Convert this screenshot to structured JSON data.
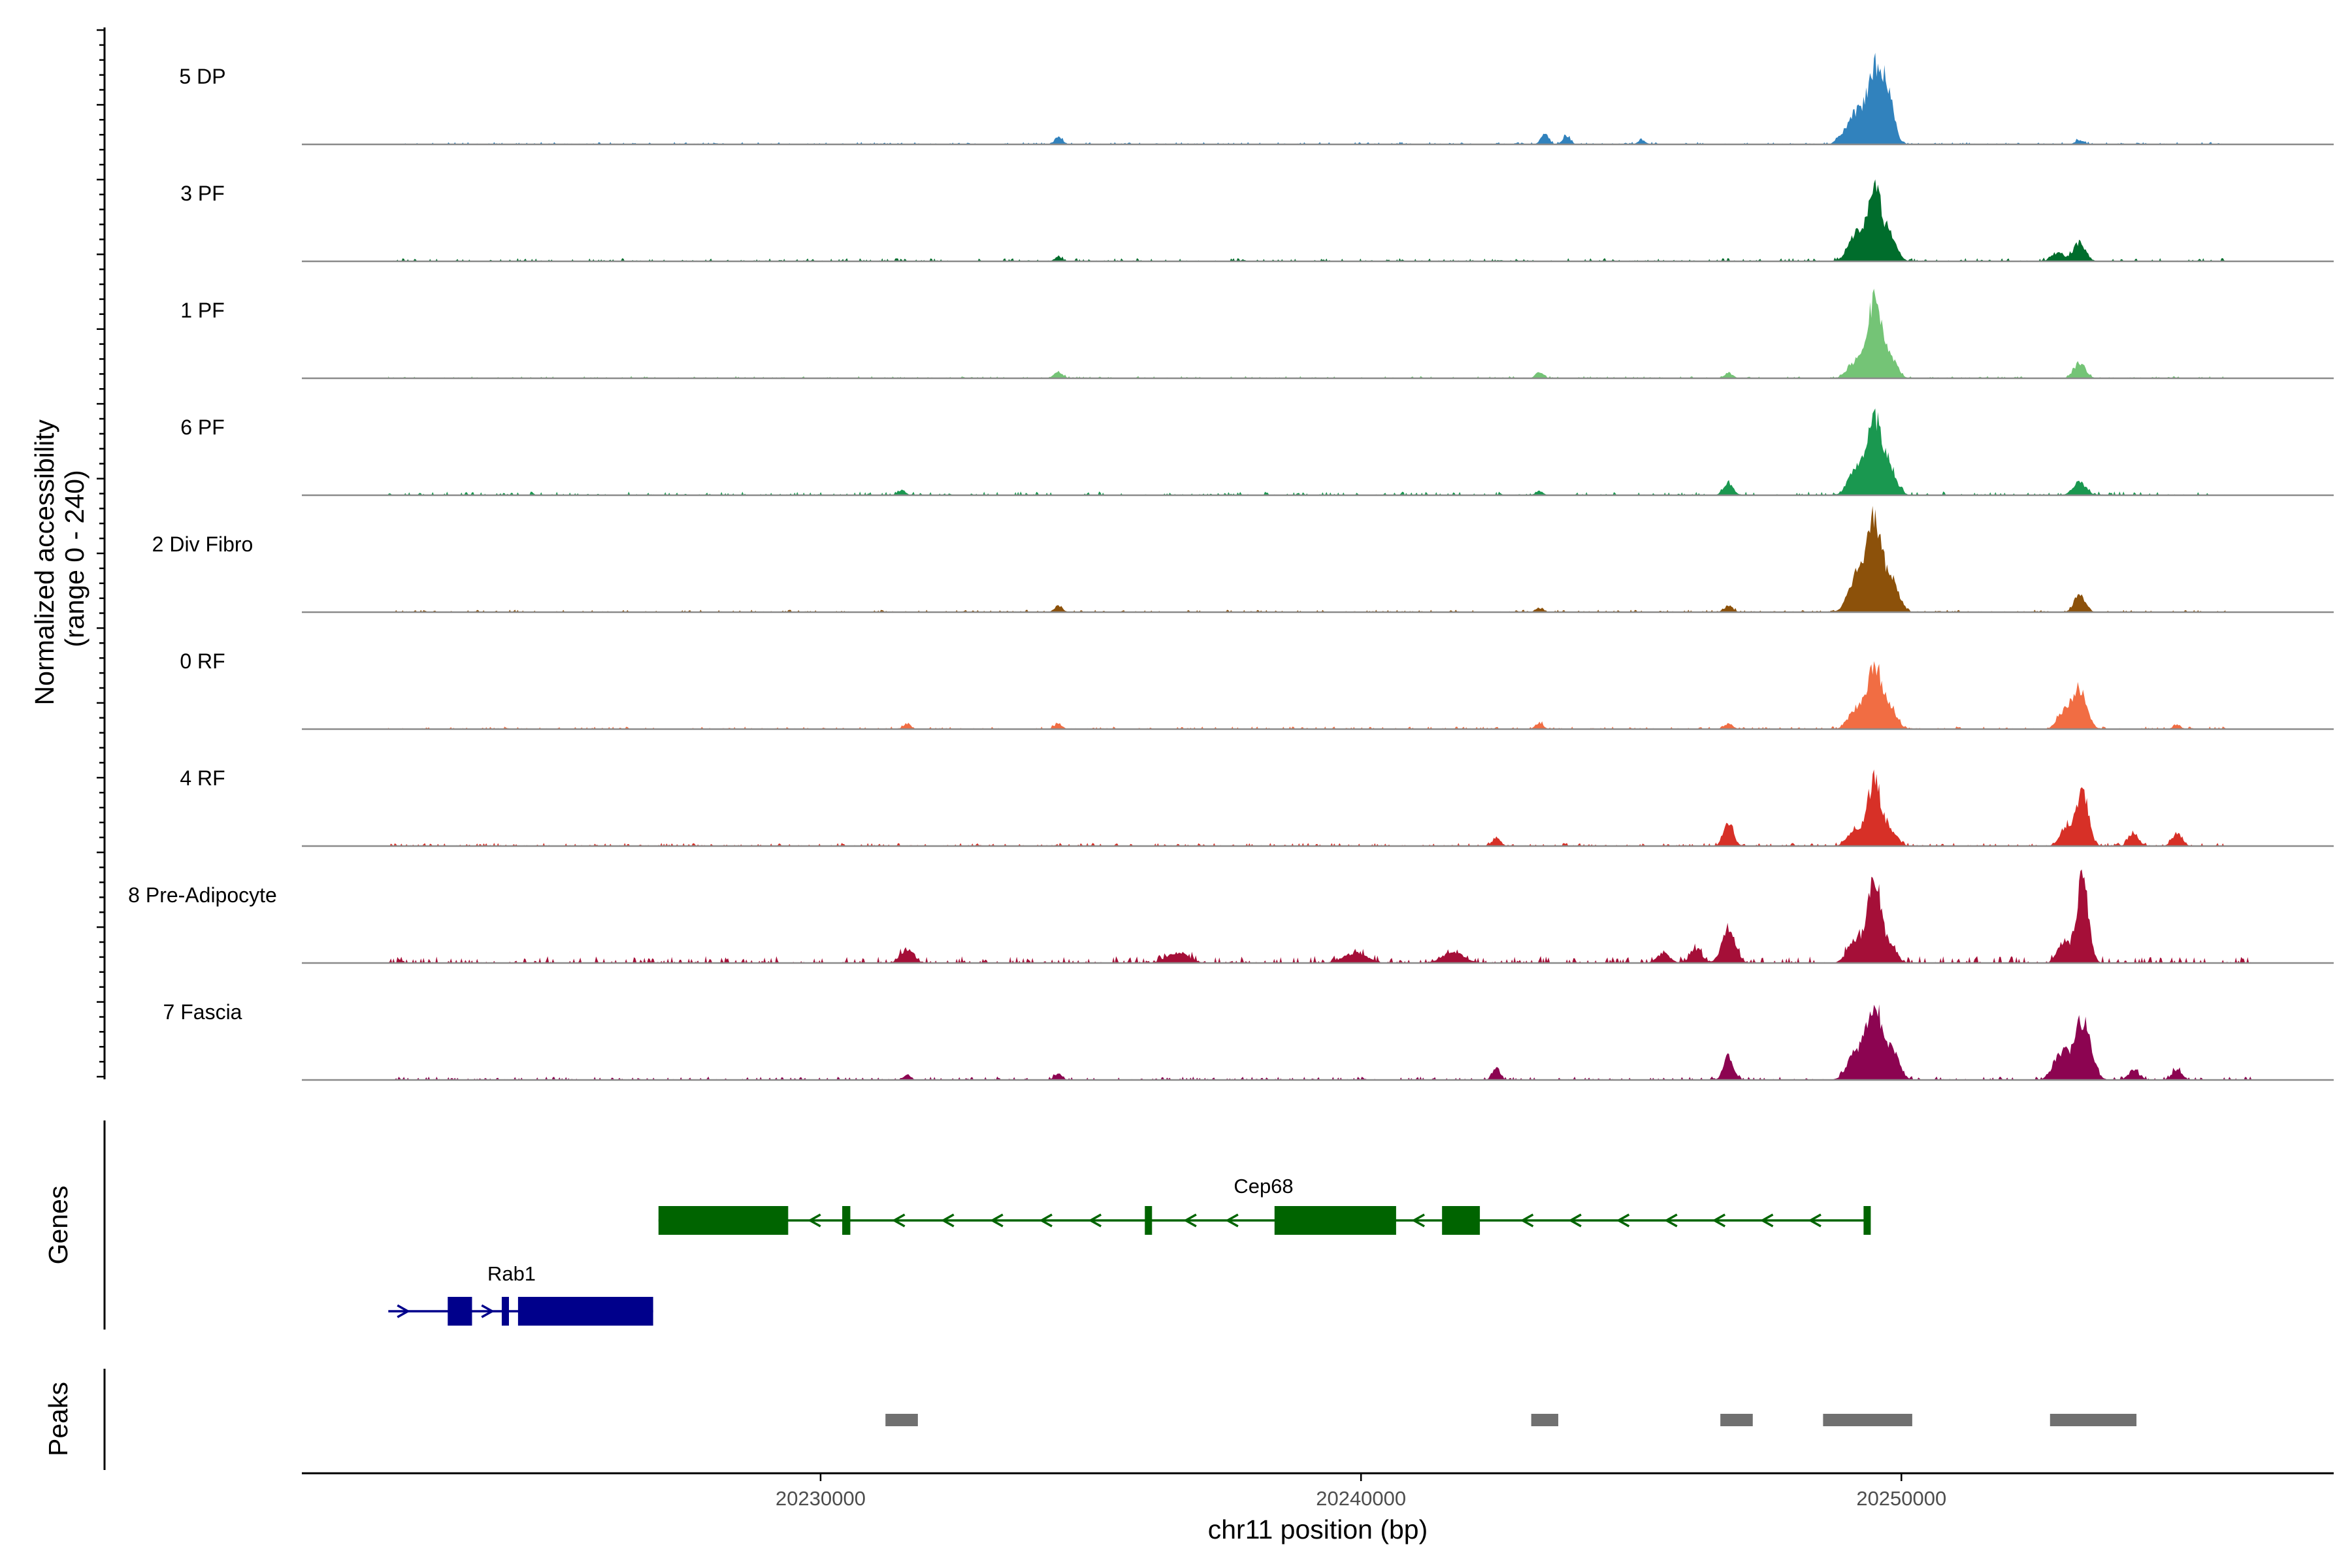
{
  "chart_data": {
    "type": "area",
    "title": "",
    "ylabel_line1": "Normalized accessibility",
    "ylabel_line2": "(range 0 - 240)",
    "xlabel": "chr11 position (bp)",
    "genes_label": "Genes",
    "peaks_label": "Peaks",
    "y_range": [
      0,
      240
    ],
    "xlim": [
      20220400,
      20258000
    ],
    "x_ticks": [
      {
        "value": 20230000,
        "label": "20230000"
      },
      {
        "value": 20240000,
        "label": "20240000"
      },
      {
        "value": 20250000,
        "label": "20250000"
      }
    ],
    "tracks": [
      {
        "name": "5 DP",
        "color": "#3182bd",
        "noise": 0.022,
        "start": 20222000,
        "end": 20256000,
        "peaks": [
          [
            20249500,
            0.7,
            140
          ],
          [
            20249750,
            0.45,
            110
          ],
          [
            20249150,
            0.28,
            120
          ],
          [
            20248900,
            0.08,
            100
          ],
          [
            20234400,
            0.07,
            70
          ],
          [
            20243400,
            0.1,
            70
          ],
          [
            20243800,
            0.08,
            70
          ],
          [
            20245200,
            0.04,
            70
          ],
          [
            20253300,
            0.04,
            80
          ]
        ]
      },
      {
        "name": "3 PF",
        "color": "#006d2c",
        "noise": 0.03,
        "start": 20222000,
        "end": 20256000,
        "peaks": [
          [
            20249500,
            0.68,
            130
          ],
          [
            20249150,
            0.25,
            140
          ],
          [
            20249800,
            0.22,
            120
          ],
          [
            20253300,
            0.18,
            110
          ],
          [
            20252900,
            0.08,
            120
          ],
          [
            20234400,
            0.04,
            70
          ]
        ]
      },
      {
        "name": "1 PF",
        "color": "#74c476",
        "noise": 0.02,
        "start": 20222000,
        "end": 20256000,
        "peaks": [
          [
            20249500,
            0.72,
            130
          ],
          [
            20249150,
            0.15,
            140
          ],
          [
            20249800,
            0.18,
            120
          ],
          [
            20253300,
            0.14,
            110
          ],
          [
            20234400,
            0.06,
            80
          ],
          [
            20243300,
            0.06,
            70
          ],
          [
            20246800,
            0.05,
            80
          ]
        ]
      },
      {
        "name": "6 PF",
        "color": "#1a9850",
        "noise": 0.035,
        "start": 20222000,
        "end": 20256000,
        "peaks": [
          [
            20249500,
            0.72,
            140
          ],
          [
            20249150,
            0.22,
            140
          ],
          [
            20249800,
            0.22,
            120
          ],
          [
            20253300,
            0.12,
            120
          ],
          [
            20246800,
            0.12,
            90
          ],
          [
            20231500,
            0.05,
            70
          ],
          [
            20243300,
            0.04,
            70
          ]
        ]
      },
      {
        "name": "2 Div Fibro",
        "color": "#8c510a",
        "noise": 0.022,
        "start": 20222000,
        "end": 20256000,
        "peaks": [
          [
            20249500,
            0.88,
            150
          ],
          [
            20249150,
            0.3,
            140
          ],
          [
            20249850,
            0.25,
            120
          ],
          [
            20253300,
            0.17,
            100
          ],
          [
            20234400,
            0.06,
            70
          ],
          [
            20246800,
            0.06,
            80
          ],
          [
            20243300,
            0.04,
            70
          ]
        ]
      },
      {
        "name": "0 RF",
        "color": "#f16d43",
        "noise": 0.024,
        "start": 20222000,
        "end": 20256000,
        "peaks": [
          [
            20249500,
            0.62,
            130
          ],
          [
            20249150,
            0.18,
            130
          ],
          [
            20249800,
            0.18,
            120
          ],
          [
            20253300,
            0.38,
            130
          ],
          [
            20253000,
            0.15,
            120
          ],
          [
            20231600,
            0.05,
            70
          ],
          [
            20234400,
            0.05,
            70
          ],
          [
            20243300,
            0.06,
            70
          ],
          [
            20246800,
            0.05,
            80
          ],
          [
            20255100,
            0.04,
            70
          ]
        ]
      },
      {
        "name": "4 RF",
        "color": "#d73027",
        "noise": 0.03,
        "start": 20222000,
        "end": 20256000,
        "peaks": [
          [
            20249500,
            0.62,
            120
          ],
          [
            20249150,
            0.15,
            140
          ],
          [
            20249800,
            0.15,
            120
          ],
          [
            20253350,
            0.52,
            110
          ],
          [
            20253050,
            0.18,
            110
          ],
          [
            20246800,
            0.22,
            90
          ],
          [
            20254300,
            0.12,
            90
          ],
          [
            20255100,
            0.12,
            90
          ],
          [
            20242500,
            0.08,
            70
          ]
        ]
      },
      {
        "name": "8 Pre-Adipocyte",
        "color": "#a50f38",
        "noise": 0.065,
        "start": 20222000,
        "end": 20256500,
        "peaks": [
          [
            20249500,
            0.75,
            120
          ],
          [
            20249150,
            0.22,
            140
          ],
          [
            20249800,
            0.15,
            120
          ],
          [
            20253350,
            0.78,
            110
          ],
          [
            20253000,
            0.2,
            110
          ],
          [
            20246800,
            0.33,
            120
          ],
          [
            20246200,
            0.13,
            110
          ],
          [
            20231600,
            0.13,
            120
          ],
          [
            20236600,
            0.1,
            200
          ],
          [
            20239900,
            0.1,
            200
          ],
          [
            20241700,
            0.1,
            200
          ],
          [
            20245600,
            0.09,
            120
          ]
        ]
      },
      {
        "name": "7 Fascia",
        "color": "#8c0451",
        "noise": 0.032,
        "start": 20222000,
        "end": 20256500,
        "peaks": [
          [
            20249500,
            0.72,
            140
          ],
          [
            20249150,
            0.25,
            150
          ],
          [
            20249850,
            0.25,
            120
          ],
          [
            20253350,
            0.55,
            150
          ],
          [
            20252950,
            0.25,
            140
          ],
          [
            20246800,
            0.22,
            90
          ],
          [
            20242500,
            0.12,
            70
          ],
          [
            20254300,
            0.1,
            90
          ],
          [
            20255100,
            0.1,
            90
          ],
          [
            20234400,
            0.06,
            70
          ],
          [
            20231600,
            0.05,
            70
          ]
        ]
      }
    ],
    "genes": [
      {
        "name": "Cep68",
        "color": "#006400",
        "strand": "-",
        "start": 20227000,
        "end": 20249400,
        "exons": [
          [
            20227000,
            20229400
          ],
          [
            20230400,
            20230550
          ],
          [
            20236000,
            20236080
          ],
          [
            20238400,
            20240650
          ],
          [
            20241500,
            20242200
          ],
          [
            20249300,
            20249400
          ]
        ]
      },
      {
        "name": "Rab1",
        "color": "#00008b",
        "strand": "+",
        "start": 20222000,
        "end": 20226900,
        "exons": [
          [
            20223100,
            20223550
          ],
          [
            20224100,
            20224200
          ],
          [
            20224400,
            20226900
          ]
        ]
      }
    ],
    "peaks": [
      [
        20231200,
        20231800
      ],
      [
        20243150,
        20243650
      ],
      [
        20246650,
        20247250
      ],
      [
        20248550,
        20250200
      ],
      [
        20252750,
        20254350
      ]
    ]
  }
}
